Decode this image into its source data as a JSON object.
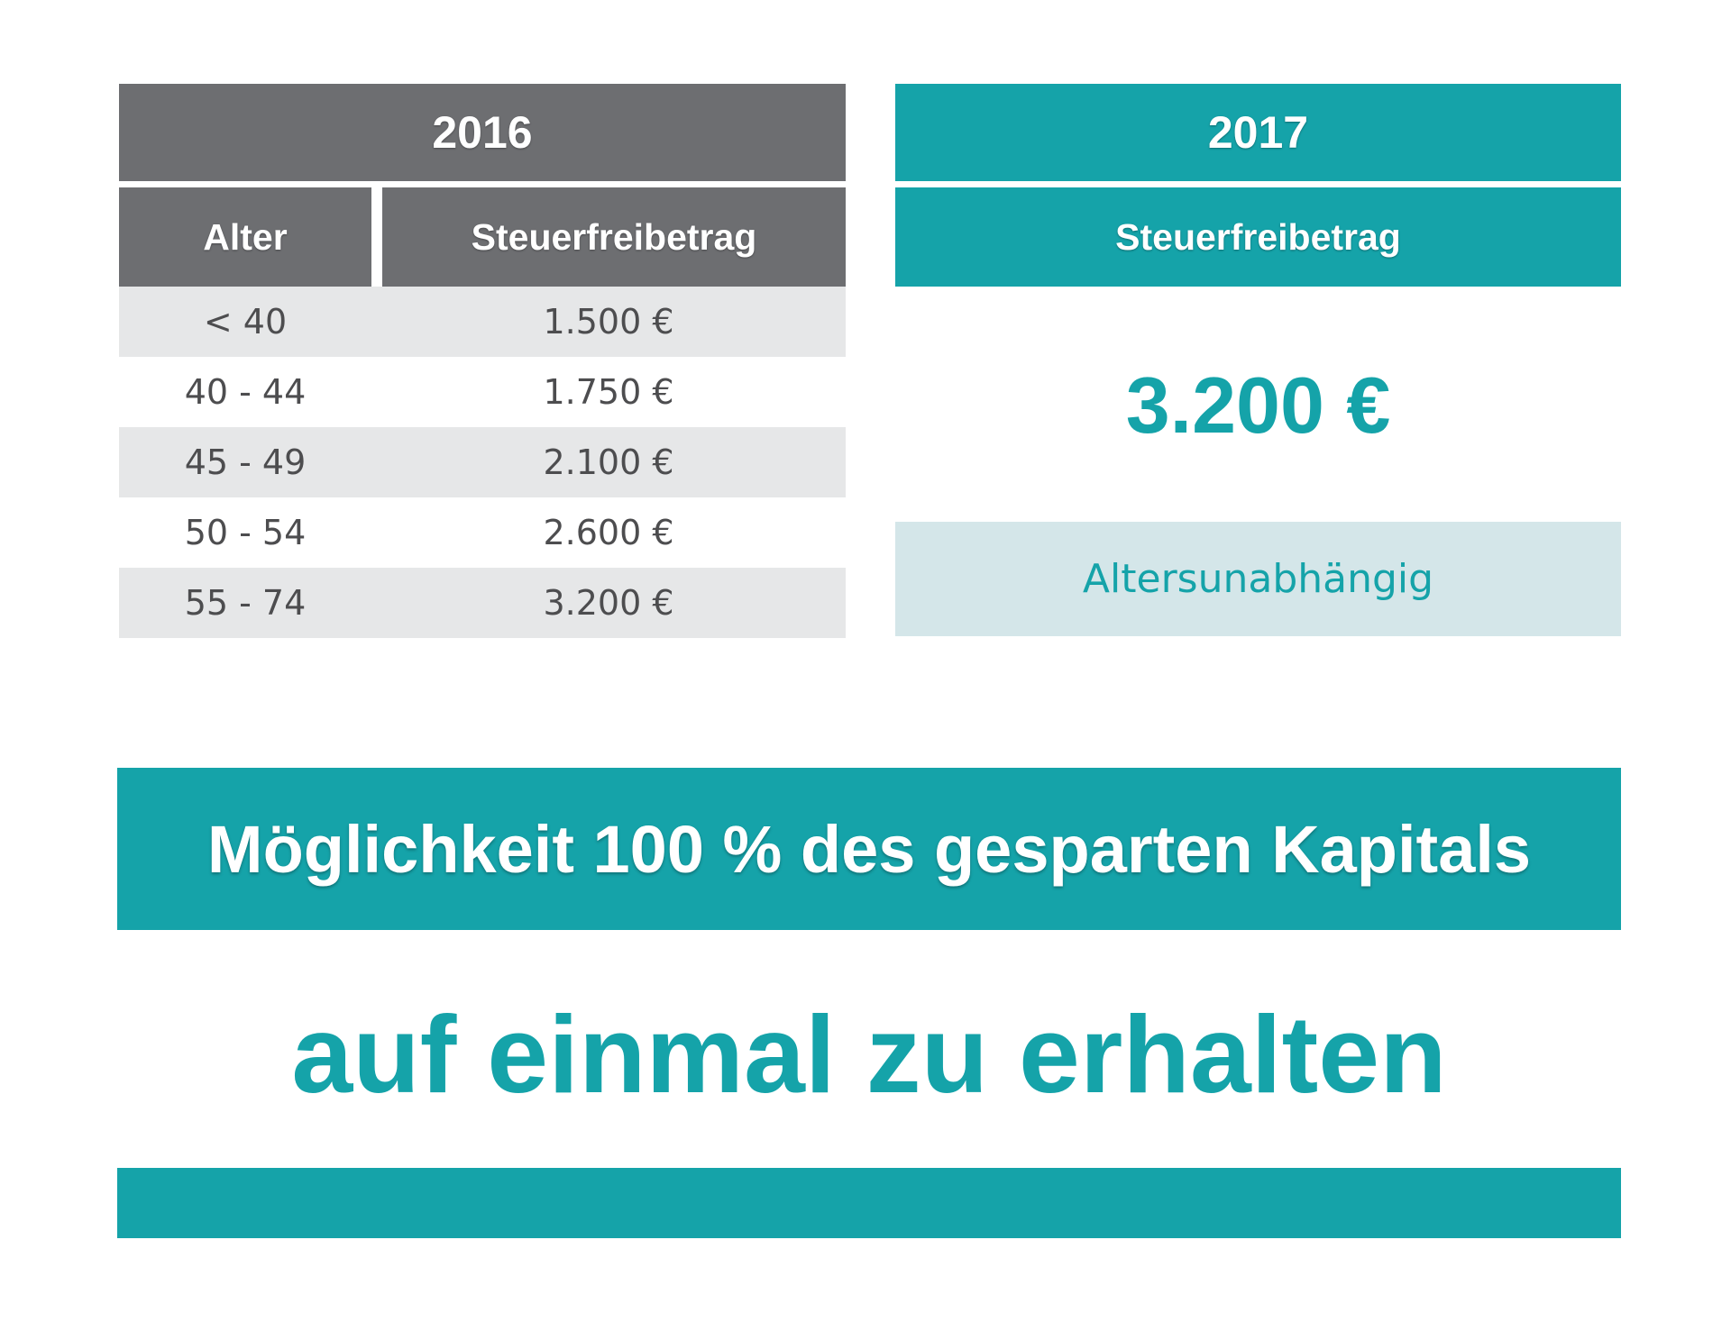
{
  "table_2016": {
    "year": "2016",
    "col_age": "Alter",
    "col_amount": "Steuerfreibetrag",
    "rows": [
      {
        "age": "< 40",
        "amount": "1.500 €"
      },
      {
        "age": "40 - 44",
        "amount": "1.750 €"
      },
      {
        "age": "45 - 49",
        "amount": "2.100 €"
      },
      {
        "age": "50 - 54",
        "amount": "2.600 €"
      },
      {
        "age": "55 - 74",
        "amount": "3.200 €"
      }
    ]
  },
  "table_2017": {
    "year": "2017",
    "col_amount": "Steuerfreibetrag",
    "amount": "3.200 €",
    "note": "Altersunabhängig"
  },
  "banner": {
    "text": "Möglichkeit 100 % des gesparten Kapitals"
  },
  "slogan": {
    "text": "auf einmal zu erhalten"
  },
  "colors": {
    "teal": "#15a3a9",
    "gray_header": "#6d6e71",
    "row_shade": "#e6e7e8",
    "light_teal": "#d4e6e9"
  }
}
